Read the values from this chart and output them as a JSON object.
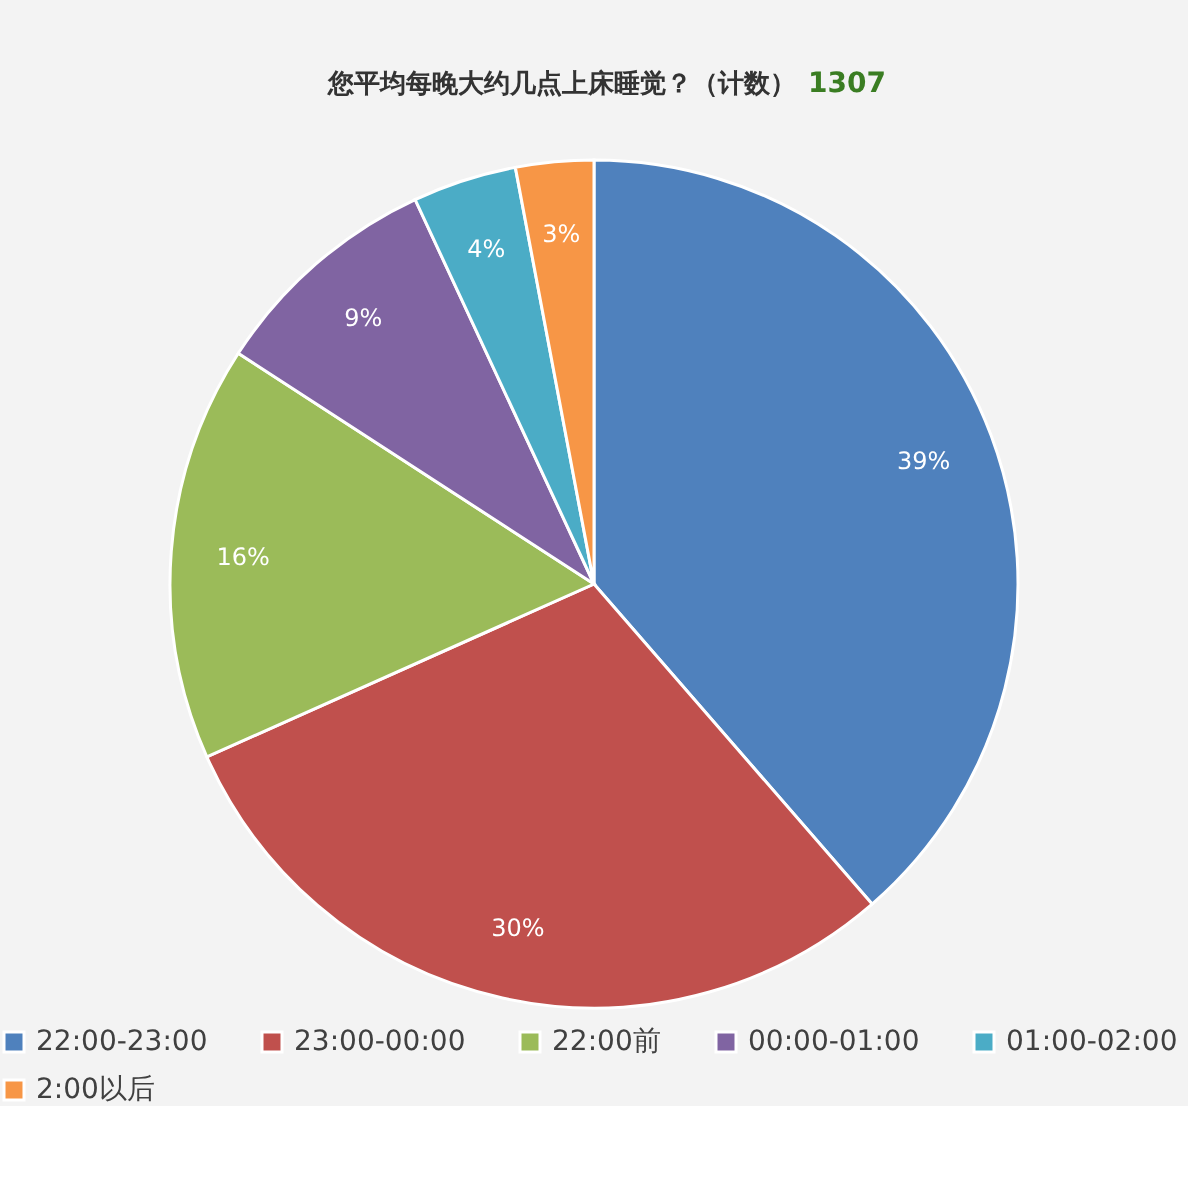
{
  "chart_data": {
    "type": "pie",
    "title": "您平均每晚大约几点上床睡觉？（计数）",
    "annotations": [
      "1307"
    ],
    "categories": [
      "22:00-23:00",
      "23:00-00:00",
      "22:00前",
      "00:00-01:00",
      "01:00-02:00",
      "2:00以后"
    ],
    "values": [
      39,
      30,
      16,
      9,
      4,
      3
    ],
    "value_labels": [
      "39%",
      "30%",
      "16%",
      "9%",
      "4%",
      "3%"
    ],
    "colors": [
      "#4f81bd",
      "#c0504d",
      "#9bbb59",
      "#8064a2",
      "#4bacc6",
      "#f79646"
    ],
    "legend": "bottom"
  }
}
